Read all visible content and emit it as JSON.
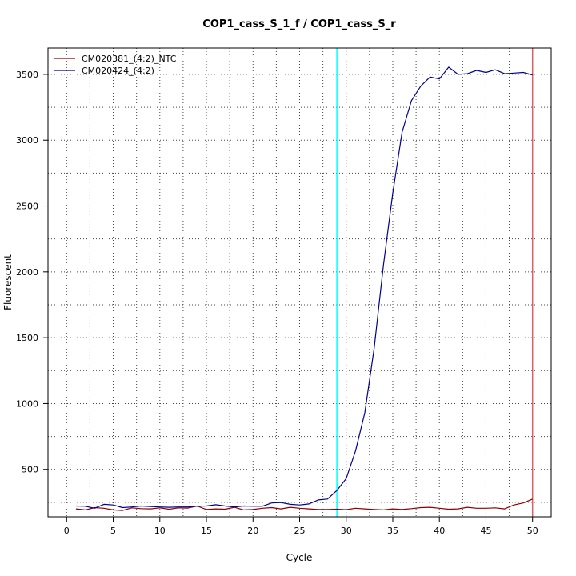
{
  "chart_data": {
    "type": "line",
    "title": "COP1_cass_S_1_f / COP1_cass_S_r",
    "xlabel": "Cycle",
    "ylabel": "Fluorescent",
    "xlim": [
      -2,
      52
    ],
    "ylim": [
      140,
      3700
    ],
    "xticks": [
      0,
      5,
      10,
      15,
      20,
      25,
      30,
      35,
      40,
      45,
      50
    ],
    "yticks": [
      500,
      1000,
      1500,
      2000,
      2500,
      3000,
      3500
    ],
    "grid": true,
    "legend_position": "top-left",
    "threshold_cycles": [
      {
        "x": 29,
        "color": "#00ffff"
      },
      {
        "x": 50,
        "color": "#e06060"
      }
    ],
    "series": [
      {
        "name": "CM020381_(4:2)_NTC",
        "color": "#8b0000",
        "x": [
          1,
          2,
          3,
          4,
          5,
          6,
          7,
          8,
          9,
          10,
          11,
          12,
          13,
          14,
          15,
          16,
          17,
          18,
          19,
          20,
          21,
          22,
          23,
          24,
          25,
          26,
          27,
          28,
          29,
          30,
          31,
          32,
          33,
          34,
          35,
          36,
          37,
          38,
          39,
          40,
          41,
          42,
          43,
          44,
          45,
          46,
          47,
          48,
          49,
          50
        ],
        "values": [
          200,
          192,
          210,
          205,
          192,
          188,
          208,
          202,
          200,
          208,
          198,
          208,
          206,
          222,
          195,
          200,
          198,
          212,
          192,
          195,
          205,
          210,
          200,
          212,
          205,
          200,
          196,
          196,
          198,
          194,
          205,
          200,
          196,
          192,
          200,
          196,
          202,
          210,
          212,
          205,
          198,
          200,
          212,
          205,
          205,
          208,
          200,
          230,
          245,
          275
        ]
      },
      {
        "name": "CM020424_(4:2)",
        "color": "#00008b",
        "x": [
          1,
          2,
          3,
          4,
          5,
          6,
          7,
          8,
          9,
          10,
          11,
          12,
          13,
          14,
          15,
          16,
          17,
          18,
          19,
          20,
          21,
          22,
          23,
          24,
          25,
          26,
          27,
          28,
          29,
          30,
          31,
          32,
          33,
          34,
          35,
          36,
          37,
          38,
          39,
          40,
          41,
          42,
          43,
          44,
          45,
          46,
          47,
          48,
          49,
          50
        ],
        "values": [
          222,
          220,
          205,
          235,
          230,
          210,
          215,
          222,
          218,
          215,
          212,
          215,
          215,
          220,
          222,
          232,
          222,
          215,
          222,
          220,
          220,
          245,
          248,
          235,
          230,
          238,
          268,
          275,
          340,
          430,
          640,
          930,
          1420,
          2050,
          2600,
          3060,
          3300,
          3410,
          3480,
          3465,
          3555,
          3500,
          3505,
          3530,
          3515,
          3535,
          3505,
          3510,
          3515,
          3495
        ]
      }
    ]
  }
}
